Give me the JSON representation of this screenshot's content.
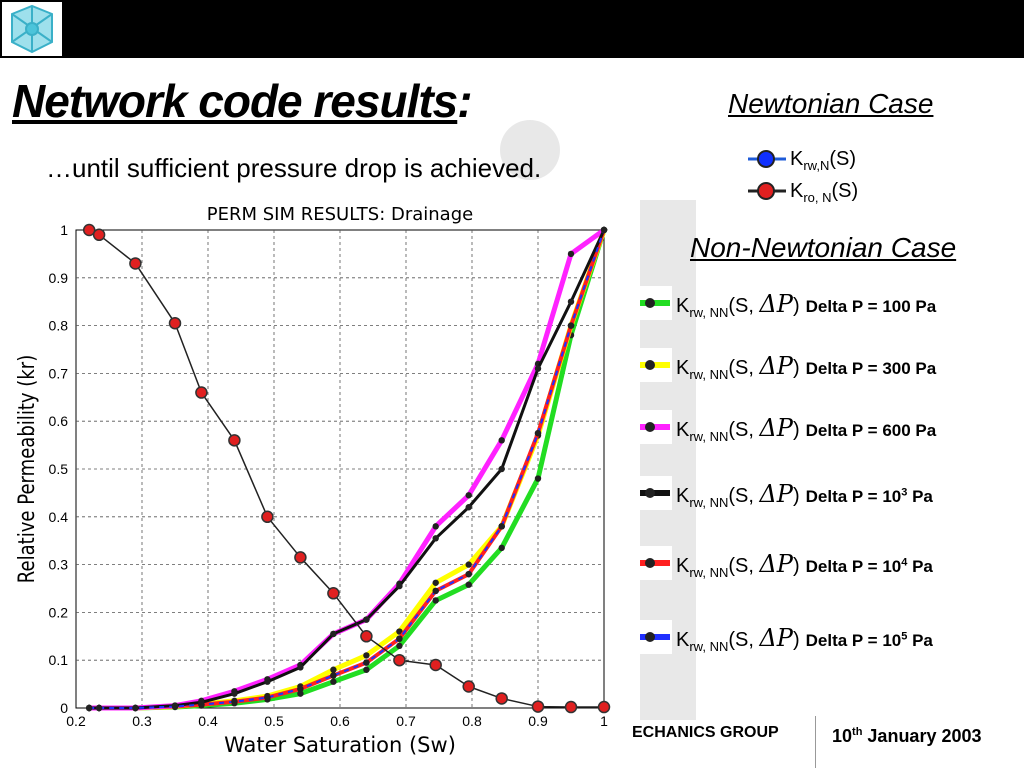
{
  "slide": {
    "title": "Network code results",
    "title_colon": ":",
    "subtitle": "…until sufficient pressure drop is achieved.",
    "newtonian_heading": "Newtonian Case",
    "non_newtonian_heading": "Non-Newtonian Case",
    "footer_left": "ECHANICS GROUP",
    "footer_date_day": "10",
    "footer_date_sup": "th",
    "footer_date_rest": " January 2003"
  },
  "legend_newtonian": [
    {
      "k": "K",
      "sub": "rw,N",
      "arg": "(S)",
      "line_color": "#1e5bd8",
      "marker_color": "#1030ff"
    },
    {
      "k": "K",
      "sub": "ro, N",
      "arg": "(S)",
      "line_color": "#222222",
      "marker_color": "#e02020"
    }
  ],
  "legend_non_newtonian": [
    {
      "k": "K",
      "sub": "rw, NN",
      "arg": "(S, ",
      "dp": "ΔP",
      "close": ")",
      "label": "Delta P = 100 Pa",
      "sup": "",
      "label_end": "",
      "color": "#22dd22"
    },
    {
      "k": "K",
      "sub": "rw, NN",
      "arg": "(S, ",
      "dp": "ΔP",
      "close": ")",
      "label": "Delta P = 300 Pa",
      "sup": "",
      "label_end": "",
      "color": "#ffff00"
    },
    {
      "k": "K",
      "sub": "rw, NN",
      "arg": "(S, ",
      "dp": "ΔP",
      "close": ")",
      "label": "Delta P = 600 Pa",
      "sup": "",
      "label_end": "",
      "color": "#ff22ff"
    },
    {
      "k": "K",
      "sub": "rw, NN",
      "arg": "(S, ",
      "dp": "ΔP",
      "close": ")",
      "label": "Delta P = 10",
      "sup": "3",
      "label_end": " Pa",
      "color": "#111111"
    },
    {
      "k": "K",
      "sub": "rw, NN",
      "arg": "(S, ",
      "dp": "ΔP",
      "close": ")",
      "label": "Delta P = 10",
      "sup": "4",
      "label_end": " Pa",
      "color": "#ff2020"
    },
    {
      "k": "K",
      "sub": "rw, NN",
      "arg": "(S, ",
      "dp": "ΔP",
      "close": ")",
      "label": "Delta P = 10",
      "sup": "5",
      "label_end": " Pa",
      "color": "#2030ff"
    }
  ],
  "chart_data": {
    "type": "line",
    "title": "PERM SIM RESULTS: Drainage",
    "xlabel": "Water Saturation (Sw)",
    "ylabel": "Relative Permeability (kr)",
    "xlim": [
      0.2,
      1.0
    ],
    "ylim": [
      0,
      1.0
    ],
    "xticks": [
      "0.2",
      "0.3",
      "0.4",
      "0.5",
      "0.6",
      "0.7",
      "0.8",
      "0.9",
      "1"
    ],
    "yticks": [
      "0",
      "0.1",
      "0.2",
      "0.3",
      "0.4",
      "0.5",
      "0.6",
      "0.7",
      "0.8",
      "0.9",
      "1"
    ],
    "grid": true,
    "series": [
      {
        "color": "#222222",
        "marker": "#e02020",
        "width": 1.5,
        "x": [
          0.22,
          0.235,
          0.29,
          0.35,
          0.39,
          0.44,
          0.49,
          0.54,
          0.59,
          0.64,
          0.69,
          0.745,
          0.795,
          0.845,
          0.9,
          0.95,
          1.0
        ],
        "y": [
          1.0,
          0.99,
          0.93,
          0.805,
          0.66,
          0.56,
          0.4,
          0.315,
          0.24,
          0.15,
          0.1,
          0.09,
          0.045,
          0.02,
          0.003,
          0.002,
          0.002
        ]
      },
      {
        "color": "#22dd22",
        "marker": "#222222",
        "width": 5,
        "x": [
          0.22,
          0.235,
          0.29,
          0.35,
          0.39,
          0.44,
          0.49,
          0.54,
          0.59,
          0.64,
          0.69,
          0.745,
          0.795,
          0.845,
          0.9,
          0.95,
          1.0
        ],
        "y": [
          0,
          0,
          0,
          0.002,
          0.005,
          0.01,
          0.018,
          0.03,
          0.055,
          0.08,
          0.13,
          0.225,
          0.258,
          0.335,
          0.48,
          0.78,
          1.0
        ]
      },
      {
        "color": "#ffff00",
        "marker": "#222222",
        "width": 5,
        "x": [
          0.22,
          0.235,
          0.29,
          0.35,
          0.39,
          0.44,
          0.49,
          0.54,
          0.59,
          0.64,
          0.69,
          0.745,
          0.795,
          0.845,
          0.9,
          0.95,
          1.0
        ],
        "y": [
          0,
          0,
          0,
          0.003,
          0.008,
          0.015,
          0.025,
          0.045,
          0.08,
          0.11,
          0.16,
          0.262,
          0.3,
          0.38,
          0.57,
          0.8,
          1.0
        ]
      },
      {
        "color": "#ff22ff",
        "marker": "#222222",
        "width": 5,
        "x": [
          0.22,
          0.235,
          0.29,
          0.35,
          0.39,
          0.44,
          0.49,
          0.54,
          0.59,
          0.64,
          0.69,
          0.745,
          0.795,
          0.845,
          0.9,
          0.95,
          1.0
        ],
        "y": [
          0,
          0,
          0,
          0.005,
          0.015,
          0.035,
          0.06,
          0.09,
          0.155,
          0.185,
          0.26,
          0.38,
          0.445,
          0.56,
          0.72,
          0.95,
          1.0
        ]
      },
      {
        "color": "#111111",
        "marker": "#222222",
        "width": 3,
        "x": [
          0.22,
          0.235,
          0.29,
          0.35,
          0.39,
          0.44,
          0.49,
          0.54,
          0.59,
          0.64,
          0.69,
          0.745,
          0.795,
          0.845,
          0.9,
          0.95,
          1.0
        ],
        "y": [
          0,
          0,
          0,
          0.005,
          0.012,
          0.03,
          0.055,
          0.085,
          0.155,
          0.185,
          0.255,
          0.355,
          0.42,
          0.5,
          0.71,
          0.85,
          1.0
        ]
      },
      {
        "color": "#ff2020",
        "marker": "#222222",
        "width": 4,
        "x": [
          0.22,
          0.235,
          0.29,
          0.35,
          0.39,
          0.44,
          0.49,
          0.54,
          0.59,
          0.64,
          0.69,
          0.745,
          0.795,
          0.845,
          0.9,
          0.95,
          1.0
        ],
        "y": [
          0,
          0,
          0,
          0.003,
          0.007,
          0.013,
          0.022,
          0.04,
          0.068,
          0.095,
          0.145,
          0.245,
          0.28,
          0.38,
          0.575,
          0.8,
          1.0
        ]
      },
      {
        "color": "#2030ff",
        "marker": "#222222",
        "width": 2,
        "dash": "5,5",
        "x": [
          0.22,
          0.235,
          0.29,
          0.35,
          0.39,
          0.44,
          0.49,
          0.54,
          0.59,
          0.64,
          0.69,
          0.745,
          0.795,
          0.845,
          0.9,
          0.95,
          1.0
        ],
        "y": [
          0,
          0,
          0,
          0.003,
          0.007,
          0.013,
          0.022,
          0.04,
          0.068,
          0.095,
          0.145,
          0.245,
          0.28,
          0.38,
          0.575,
          0.8,
          1.0
        ]
      }
    ]
  }
}
